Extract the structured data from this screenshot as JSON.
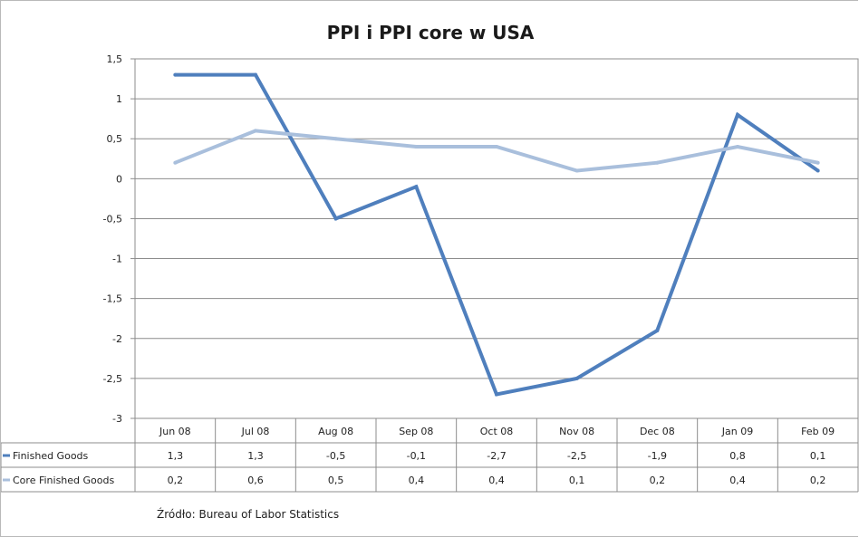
{
  "chart_data": {
    "type": "line",
    "title": "PPI i PPI core w USA",
    "categories": [
      "Jun 08",
      "Jul 08",
      "Aug 08",
      "Sep 08",
      "Oct 08",
      "Nov 08",
      "Dec 08",
      "Jan 09",
      "Feb 09"
    ],
    "series": [
      {
        "name": "Finished Goods",
        "values": [
          1.3,
          1.3,
          -0.5,
          -0.1,
          -2.7,
          -2.5,
          -1.9,
          0.8,
          0.1
        ],
        "labels": [
          "1,3",
          "1,3",
          "-0,5",
          "-0,1",
          "-2,7",
          "-2,5",
          "-1,9",
          "0,8",
          "0,1"
        ],
        "color": "#4f7fbd"
      },
      {
        "name": "Core Finished Goods",
        "values": [
          0.2,
          0.6,
          0.5,
          0.4,
          0.4,
          0.1,
          0.2,
          0.4,
          0.2
        ],
        "labels": [
          "0,2",
          "0,6",
          "0,5",
          "0,4",
          "0,4",
          "0,1",
          "0,2",
          "0,4",
          "0,2"
        ],
        "color": "#a9bfdc"
      }
    ],
    "ylim": [
      -3,
      1.5
    ],
    "yticks": [
      1.5,
      1,
      0.5,
      0,
      -0.5,
      -1,
      -1.5,
      -2,
      -2.5,
      -3
    ],
    "ytick_labels": [
      "1,5",
      "1",
      "0,5",
      "0",
      "-0,5",
      "-1",
      "-1,5",
      "-2",
      "-2,5",
      "-3"
    ],
    "grid": true,
    "plot_background": "#ffffff",
    "legend_placement": "data-table-bottom",
    "source_note": "Źródło:  Bureau of Labor Statistics"
  }
}
